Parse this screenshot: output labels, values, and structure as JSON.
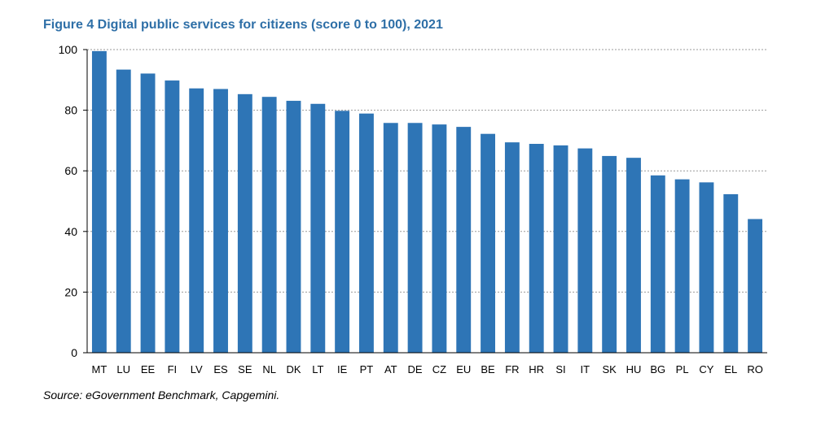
{
  "figure": {
    "title": "Figure 4 Digital public services for citizens (score 0 to 100), 2021",
    "source": "Source: eGovernment Benchmark, Capgemini."
  },
  "colors": {
    "bar": "#2E75B6",
    "title": "#2E6FA7",
    "grid": "#9a9a9a"
  },
  "chart_data": {
    "type": "bar",
    "title": "Figure 4 Digital public services for citizens (score 0 to 100), 2021",
    "xlabel": "",
    "ylabel": "",
    "ylim": [
      0,
      100
    ],
    "yticks": [
      0,
      20,
      40,
      60,
      80,
      100
    ],
    "grid": true,
    "legend": "none",
    "categories": [
      "MT",
      "LU",
      "EE",
      "FI",
      "LV",
      "ES",
      "SE",
      "NL",
      "DK",
      "LT",
      "IE",
      "PT",
      "AT",
      "DE",
      "CZ",
      "EU",
      "BE",
      "FR",
      "HR",
      "SI",
      "IT",
      "SK",
      "HU",
      "BG",
      "PL",
      "CY",
      "EL",
      "RO"
    ],
    "values": [
      99.5,
      93.4,
      92.1,
      89.8,
      87.2,
      87.0,
      85.3,
      84.4,
      83.1,
      82.1,
      79.8,
      78.9,
      75.8,
      75.8,
      75.3,
      74.5,
      72.2,
      69.4,
      68.9,
      68.4,
      67.4,
      64.9,
      64.3,
      58.5,
      57.2,
      56.2,
      52.3,
      44.1
    ]
  }
}
